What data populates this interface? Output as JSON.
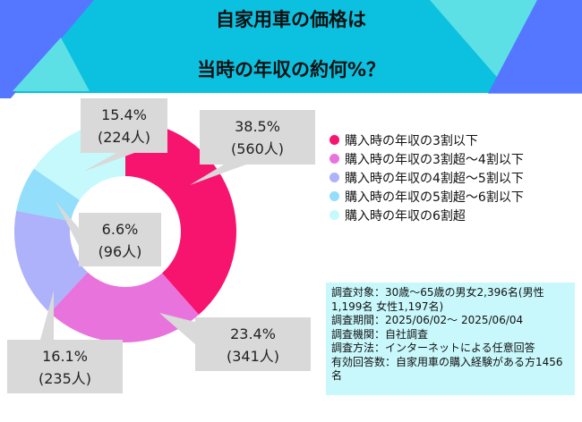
{
  "title": {
    "line1": "自家用車の価格は",
    "line2": "当時の年収の約何%？"
  },
  "colors": {
    "header": "#0cc0e0",
    "accent_blue": "#5577ff",
    "accent_cyan": "#5ce0e6"
  },
  "chart_data": {
    "type": "pie",
    "donut": true,
    "title": "自家用車の価格は当時の年収の約何%？",
    "categories": [
      "購入時の年収の3割以下",
      "購入時の年収の3割超～4割以下",
      "購入時の年収の4割超～5割以下",
      "購入時の年収の5割超～6割以下",
      "購入時の年収の6割超"
    ],
    "values": [
      38.5,
      23.4,
      16.1,
      6.6,
      15.4
    ],
    "counts": [
      560,
      341,
      235,
      96,
      224
    ],
    "labels": [
      {
        "pct": "38.5%",
        "count": "(560人)"
      },
      {
        "pct": "23.4%",
        "count": "(341人)"
      },
      {
        "pct": "16.1%",
        "count": "(235人)"
      },
      {
        "pct": "6.6%",
        "count": "(96人)"
      },
      {
        "pct": "15.4%",
        "count": "(224人)"
      }
    ],
    "colors": [
      "#f7146e",
      "#e873dc",
      "#adb2fb",
      "#93defb",
      "#c6f9fb"
    ],
    "legend_position": "right"
  },
  "notes": [
    "調査対象：30歳～65歳の男女2,396名(男性1,199名 女性1,197名)",
    "調査期間：2025/06/02～ 2025/06/04",
    "調査機関：自社調査",
    "調査方法：インターネットによる任意回答",
    "有効回答数：自家用車の購入経験がある方1456名"
  ]
}
